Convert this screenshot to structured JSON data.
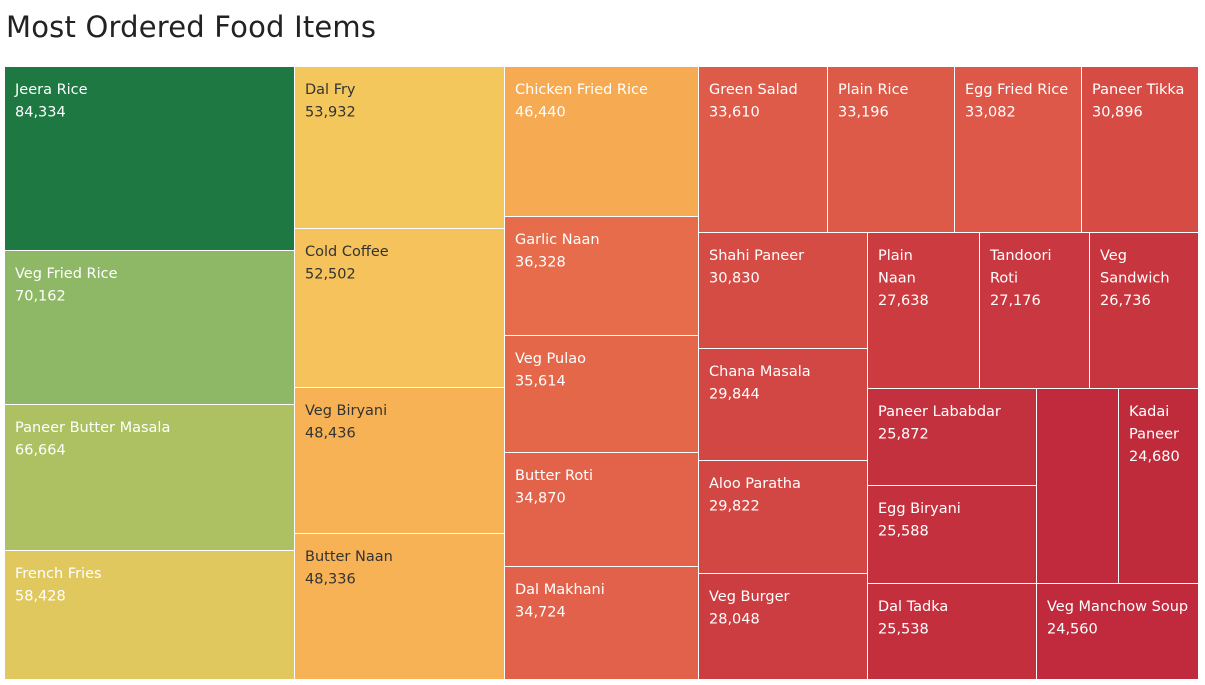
{
  "title": "Most Ordered Food Items",
  "chart_data": {
    "type": "treemap",
    "title": "Most Ordered Food Items",
    "size_measure": "orders",
    "color_scale": [
      "#1e7842",
      "#6aad6b",
      "#c2c75f",
      "#f4c95e",
      "#f7a34e",
      "#e2604a",
      "#c02a3c"
    ],
    "items": [
      {
        "name": "Jeera Rice",
        "value": 84334
      },
      {
        "name": "Veg Fried Rice",
        "value": 70162
      },
      {
        "name": "Paneer Butter Masala",
        "value": 66664
      },
      {
        "name": "French Fries",
        "value": 58428
      },
      {
        "name": "Dal Fry",
        "value": 53932
      },
      {
        "name": "Cold Coffee",
        "value": 52502
      },
      {
        "name": "Veg Biryani",
        "value": 48436
      },
      {
        "name": "Butter Naan",
        "value": 48336
      },
      {
        "name": "Chicken Fried Rice",
        "value": 46440
      },
      {
        "name": "Garlic Naan",
        "value": 36328
      },
      {
        "name": "Veg Pulao",
        "value": 35614
      },
      {
        "name": "Butter Roti",
        "value": 34870
      },
      {
        "name": "Dal Makhani",
        "value": 34724
      },
      {
        "name": "Green Salad",
        "value": 33610
      },
      {
        "name": "Plain Rice",
        "value": 33196
      },
      {
        "name": "Egg Fried Rice",
        "value": 33082
      },
      {
        "name": "Paneer Tikka",
        "value": 30896
      },
      {
        "name": "Shahi Paneer",
        "value": 30830
      },
      {
        "name": "Chana Masala",
        "value": 29844
      },
      {
        "name": "Aloo Paratha",
        "value": 29822
      },
      {
        "name": "Veg Burger",
        "value": 28048
      },
      {
        "name": "Plain Naan",
        "value": 27638
      },
      {
        "name": "Tandoori Roti",
        "value": 27176
      },
      {
        "name": "Veg Sandwich",
        "value": 26736
      },
      {
        "name": "Paneer Lababdar",
        "value": 25872
      },
      {
        "name": "Egg Biryani",
        "value": 25588
      },
      {
        "name": "Dal Tadka",
        "value": 25538
      },
      {
        "name": "Kadai Paneer",
        "value": 24680
      },
      {
        "name": "Veg Manchow Soup",
        "value": 24560
      },
      {
        "name": "",
        "value": null
      }
    ]
  }
}
